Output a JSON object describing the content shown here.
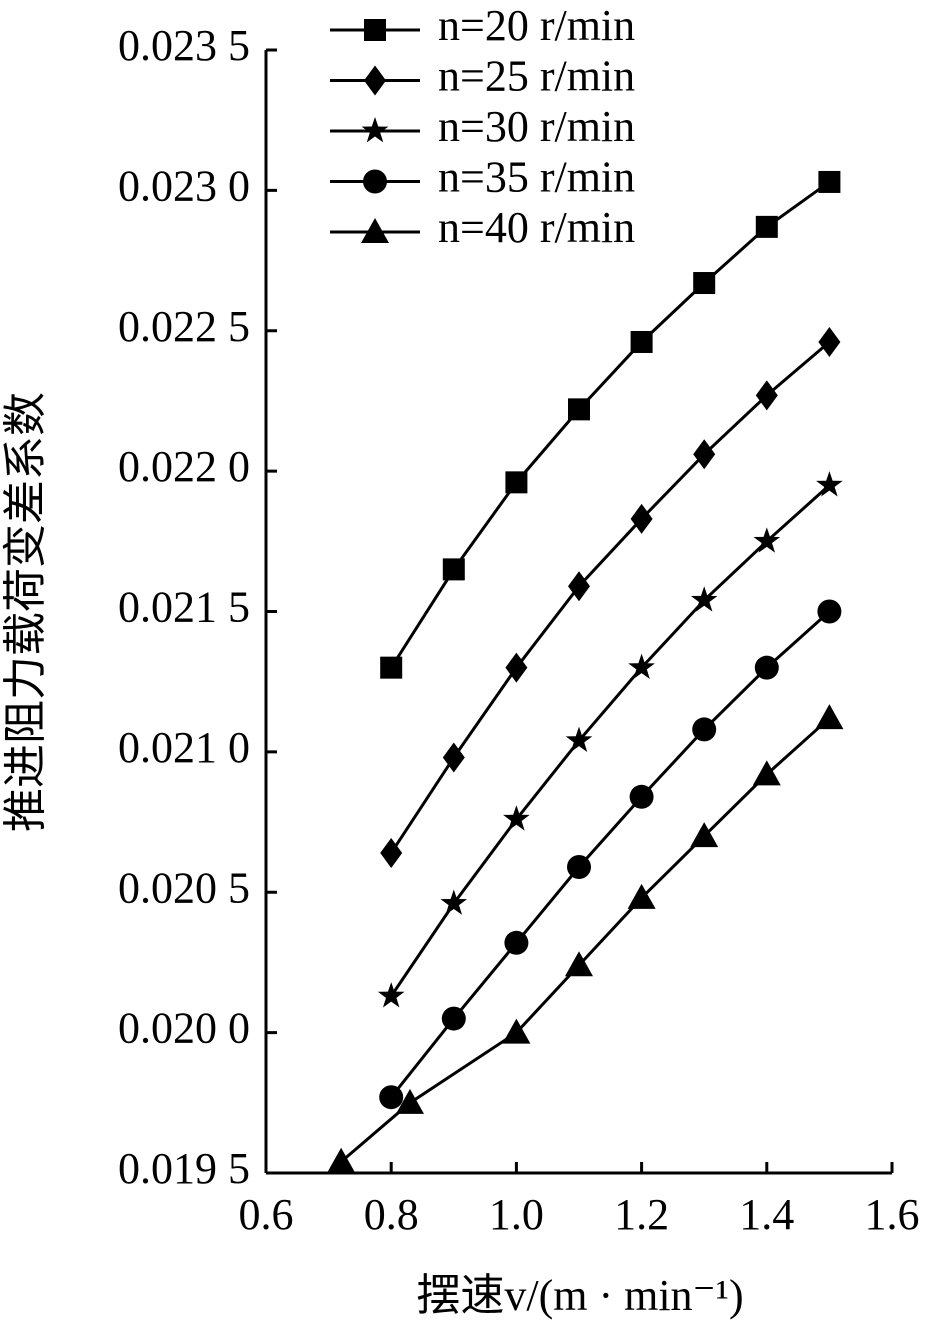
{
  "chart_data": {
    "type": "line",
    "x_label": "摆速v/(m · min⁻¹)",
    "y_label": "推进阻力载荷变差系数",
    "xlim": [
      0.6,
      1.6
    ],
    "xticks": [
      0.6,
      0.8,
      {
        "value": 1.0,
        "label": "1.0"
      },
      1.2,
      1.4,
      1.6
    ],
    "ylim": [
      0.0195,
      0.0235
    ],
    "yticks": [
      {
        "value": 0.0195,
        "label": "0.019 5"
      },
      {
        "value": 0.02,
        "label": "0.020 0"
      },
      {
        "value": 0.0205,
        "label": "0.020 5"
      },
      {
        "value": 0.021,
        "label": "0.021 0"
      },
      {
        "value": 0.0215,
        "label": "0.021 5"
      },
      {
        "value": 0.022,
        "label": "0.022 0"
      },
      {
        "value": 0.0225,
        "label": "0.022 5"
      },
      {
        "value": 0.023,
        "label": "0.023 0"
      },
      {
        "value": 0.0235,
        "label": "0.023 5"
      }
    ],
    "color": "#000000",
    "series": [
      {
        "name": "n=20 r/min",
        "marker": "square",
        "x": [
          0.8,
          0.9,
          1.0,
          1.1,
          1.2,
          1.3,
          1.4,
          1.5
        ],
        "values": [
          0.0213,
          0.02165,
          0.02196,
          0.02222,
          0.02246,
          0.02267,
          0.02287,
          0.02303
        ]
      },
      {
        "name": "n=25 r/min",
        "marker": "diamond",
        "x": [
          0.8,
          0.9,
          1.0,
          1.1,
          1.2,
          1.3,
          1.4,
          1.5
        ],
        "values": [
          0.02064,
          0.02098,
          0.0213,
          0.02159,
          0.02183,
          0.02206,
          0.02227,
          0.02246
        ]
      },
      {
        "name": "n=30 r/min",
        "marker": "star",
        "x": [
          0.8,
          0.9,
          1.0,
          1.1,
          1.2,
          1.3,
          1.4,
          1.5
        ],
        "values": [
          0.02013,
          0.02046,
          0.02076,
          0.02104,
          0.0213,
          0.02154,
          0.02175,
          0.02195
        ]
      },
      {
        "name": "n=35 r/min",
        "marker": "circle",
        "x": [
          0.8,
          0.9,
          1.0,
          1.1,
          1.2,
          1.3,
          1.4,
          1.5
        ],
        "values": [
          0.01977,
          0.02005,
          0.02032,
          0.02059,
          0.02084,
          0.02108,
          0.0213,
          0.0215
        ]
      },
      {
        "name": "n=40 r/min",
        "marker": "triangle",
        "x": [
          0.72,
          0.83,
          1.0,
          1.1,
          1.2,
          1.3,
          1.4,
          1.5
        ],
        "values": [
          0.01954,
          0.01975,
          0.02,
          0.02024,
          0.02048,
          0.0207,
          0.02092,
          0.02112
        ]
      }
    ]
  }
}
